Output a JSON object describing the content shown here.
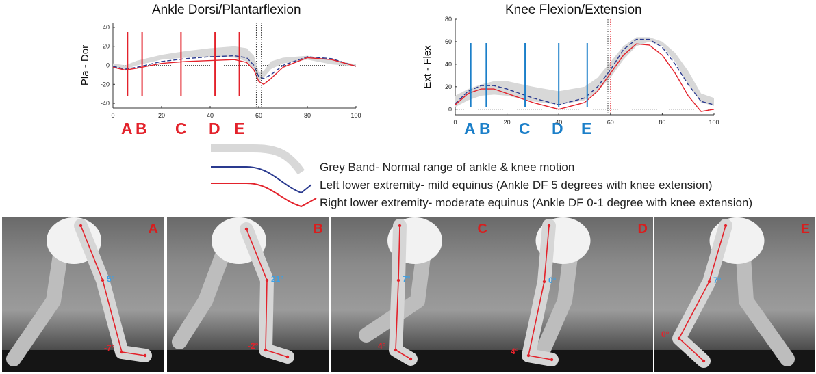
{
  "colors": {
    "band": "#d8d8d8",
    "left": "#2a3a8f",
    "right": "#e3222b",
    "phase_red": "#e3222b",
    "phase_blue": "#1b7fc9",
    "angle_blue": "#3aa0e6"
  },
  "chart_data": [
    {
      "type": "line",
      "title": "Ankle Dorsi/Plantarflexion",
      "ylabel": "Pla   -   Dor",
      "xlim": [
        0,
        100
      ],
      "ylim": [
        -45,
        45
      ],
      "xticks": [
        0,
        20,
        40,
        60,
        80,
        100
      ],
      "yticks": [
        -40,
        -20,
        0,
        20,
        40
      ],
      "band": {
        "x": [
          0,
          5,
          10,
          20,
          30,
          40,
          50,
          55,
          58,
          60,
          62,
          65,
          70,
          80,
          90,
          100
        ],
        "lower": [
          -3,
          -4,
          0,
          6,
          8,
          9,
          8,
          4,
          -5,
          -17,
          -13,
          -4,
          2,
          6,
          1,
          -1
        ],
        "upper": [
          2,
          0,
          5,
          11,
          15,
          18,
          20,
          18,
          10,
          -7,
          -6,
          4,
          8,
          10,
          6,
          1
        ]
      },
      "series": [
        {
          "name": "Left lower extremity",
          "style": "dashed",
          "x": [
            0,
            5,
            10,
            20,
            30,
            40,
            50,
            55,
            58,
            60,
            62,
            65,
            70,
            80,
            90,
            100
          ],
          "y": [
            -1,
            -4,
            -2,
            4,
            7,
            9,
            10,
            8,
            0,
            -12,
            -14,
            -10,
            0,
            9,
            7,
            -1
          ]
        },
        {
          "name": "Right lower extremity",
          "style": "solid",
          "x": [
            0,
            5,
            10,
            20,
            30,
            40,
            50,
            55,
            58,
            60,
            62,
            65,
            70,
            80,
            90,
            100
          ],
          "y": [
            -2,
            -5,
            -3,
            2,
            4,
            5,
            6,
            3,
            -5,
            -17,
            -20,
            -14,
            -2,
            8,
            6,
            -1
          ]
        }
      ],
      "phase_lines": [
        6,
        12,
        28,
        42,
        52
      ],
      "toe_off_lines": [
        59,
        61
      ],
      "phase_labels": [
        "A",
        "B",
        "C",
        "D",
        "E"
      ]
    },
    {
      "type": "line",
      "title": "Knee Flexion/Extension",
      "ylabel": "Ext   -   Flex",
      "xlim": [
        0,
        100
      ],
      "ylim": [
        -5,
        80
      ],
      "xticks": [
        0,
        20,
        40,
        60,
        80,
        100
      ],
      "yticks": [
        0,
        20,
        40,
        60,
        80
      ],
      "band": {
        "x": [
          0,
          5,
          10,
          15,
          20,
          30,
          40,
          50,
          55,
          60,
          65,
          70,
          75,
          80,
          85,
          90,
          95,
          100
        ],
        "lower": [
          2,
          8,
          12,
          13,
          12,
          7,
          4,
          8,
          16,
          28,
          44,
          56,
          60,
          56,
          42,
          22,
          6,
          3
        ],
        "upper": [
          12,
          18,
          22,
          25,
          25,
          20,
          16,
          20,
          28,
          42,
          56,
          64,
          64,
          60,
          50,
          34,
          14,
          10
        ]
      },
      "series": [
        {
          "name": "Left lower extremity",
          "style": "dashed",
          "x": [
            0,
            5,
            10,
            15,
            20,
            30,
            40,
            50,
            55,
            60,
            65,
            70,
            75,
            80,
            85,
            90,
            95,
            100
          ],
          "y": [
            5,
            16,
            21,
            21,
            18,
            10,
            4,
            10,
            20,
            35,
            53,
            62,
            62,
            55,
            40,
            22,
            7,
            4
          ]
        },
        {
          "name": "Right lower extremity",
          "style": "solid",
          "x": [
            0,
            5,
            10,
            15,
            20,
            30,
            40,
            50,
            55,
            60,
            65,
            70,
            75,
            80,
            85,
            90,
            95,
            100
          ],
          "y": [
            4,
            14,
            18,
            18,
            14,
            6,
            0,
            6,
            16,
            32,
            48,
            58,
            57,
            48,
            32,
            12,
            -2,
            0
          ]
        }
      ],
      "phase_lines": [
        6,
        12,
        27,
        40,
        51
      ],
      "toe_off_lines": [
        59,
        60
      ],
      "phase_labels": [
        "A",
        "B",
        "C",
        "D",
        "E"
      ]
    }
  ],
  "legend": {
    "grey_band": "Grey Band- Normal range of ankle & knee motion",
    "left": "Left lower extremity- mild equinus (Ankle DF 5 degrees with knee extension)",
    "right": "Right lower extremity- moderate equinus (Ankle DF 0-1 degree with knee extension)"
  },
  "photos": [
    {
      "label": "A",
      "knee_angle": "5°",
      "ankle_angle": "-7°"
    },
    {
      "label": "B",
      "knee_angle": "21°",
      "ankle_angle": "-2°"
    },
    {
      "label": "C",
      "knee_angle": "7°",
      "ankle_angle": "4°"
    },
    {
      "label": "D",
      "knee_angle": "0°",
      "ankle_angle": "4°"
    },
    {
      "label": "E",
      "knee_angle": "7°",
      "ankle_angle": "0°"
    }
  ]
}
